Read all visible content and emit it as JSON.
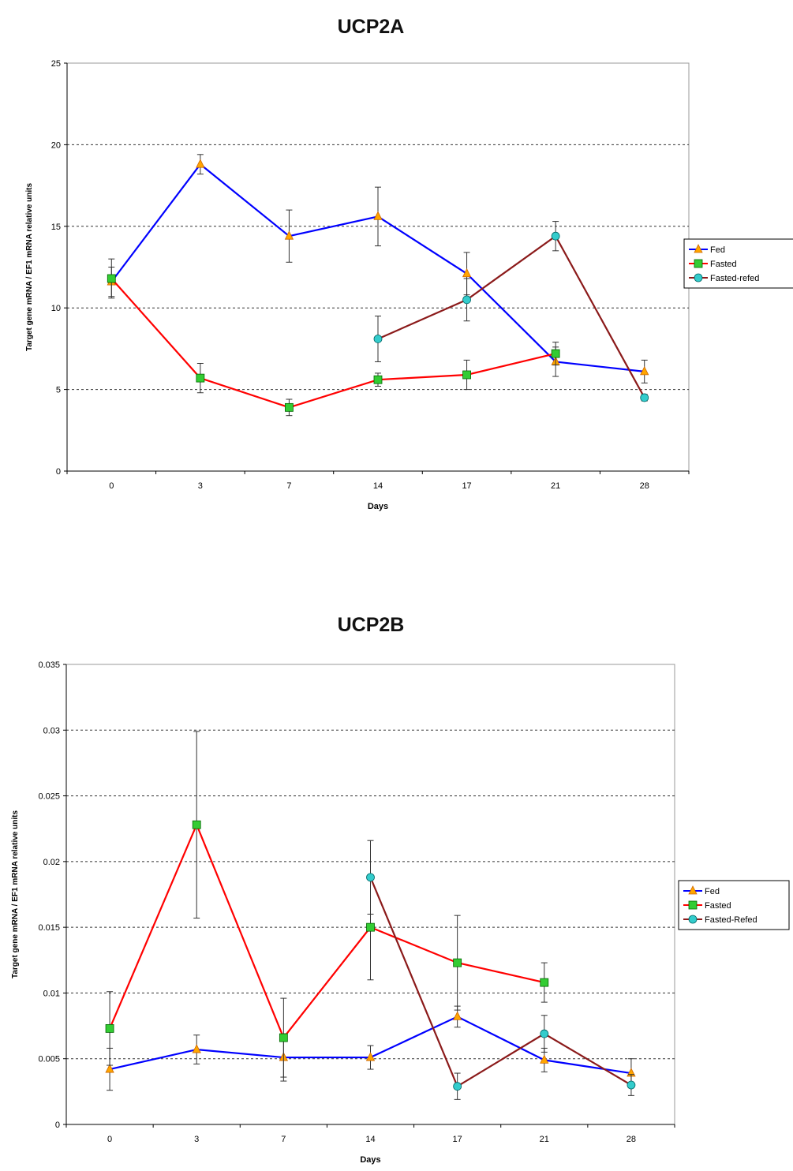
{
  "chart_data": [
    {
      "type": "line",
      "title": "UCP2A",
      "xlabel": "Days",
      "ylabel": "Target gene mRNA / EF1 mRNA relative units",
      "categories": [
        "0",
        "3",
        "7",
        "14",
        "17",
        "21",
        "28"
      ],
      "yticks": [
        "0",
        "5",
        "10",
        "15",
        "20",
        "25"
      ],
      "ylim": [
        0,
        25
      ],
      "grid": "horizontal dashed at major ticks",
      "legend_position": "right",
      "series": [
        {
          "name": "Fed",
          "color": "#0000ff",
          "marker": "triangle",
          "marker_color": "#ffa500",
          "values": [
            11.6,
            18.8,
            14.4,
            15.6,
            12.1,
            6.7,
            6.1
          ],
          "errors": [
            0.9,
            0.6,
            1.6,
            1.8,
            1.3,
            0.9,
            0.7
          ]
        },
        {
          "name": "Fasted",
          "color": "#ff0000",
          "marker": "square",
          "marker_color": "#33cc33",
          "values": [
            11.8,
            5.7,
            3.9,
            5.6,
            5.9,
            7.2,
            null
          ],
          "errors": [
            1.2,
            0.9,
            0.5,
            0.4,
            0.9,
            0.7,
            null
          ]
        },
        {
          "name": "Fasted-refed",
          "color": "#8b1a1a",
          "marker": "circle",
          "marker_color": "#33cccc",
          "values": [
            null,
            null,
            null,
            8.1,
            10.5,
            14.4,
            4.5
          ],
          "errors": [
            null,
            null,
            null,
            1.4,
            1.3,
            0.9,
            0.2
          ]
        }
      ]
    },
    {
      "type": "line",
      "title": "UCP2B",
      "xlabel": "Days",
      "ylabel": "Target gene mRNA / EF1 mRNA relative units",
      "categories": [
        "0",
        "3",
        "7",
        "14",
        "17",
        "21",
        "28"
      ],
      "yticks": [
        "0",
        "0.005",
        "0.01",
        "0.015",
        "0.02",
        "0.025",
        "0.03",
        "0.035"
      ],
      "ylim": [
        0,
        0.035
      ],
      "grid": "horizontal dashed at major ticks",
      "legend_position": "right",
      "series": [
        {
          "name": "Fed",
          "color": "#0000ff",
          "marker": "triangle",
          "marker_color": "#ffa500",
          "values": [
            0.0042,
            0.0057,
            0.0051,
            0.0051,
            0.0082,
            0.0049,
            0.0039
          ],
          "errors": [
            0.0016,
            0.0011,
            0.0018,
            0.0009,
            0.0008,
            0.0009,
            0.0011
          ]
        },
        {
          "name": "Fasted",
          "color": "#ff0000",
          "marker": "square",
          "marker_color": "#33cc33",
          "values": [
            0.0073,
            0.0228,
            0.0066,
            0.015,
            0.0123,
            0.0108,
            null
          ],
          "errors": [
            0.0028,
            0.0071,
            0.003,
            0.004,
            0.0036,
            0.0015,
            null
          ]
        },
        {
          "name": "Fasted-Refed",
          "color": "#8b1a1a",
          "marker": "circle",
          "marker_color": "#33cccc",
          "values": [
            null,
            null,
            null,
            0.0188,
            0.0029,
            0.0069,
            0.003
          ],
          "errors": [
            null,
            null,
            null,
            0.0028,
            0.001,
            0.0014,
            0.0008
          ]
        }
      ]
    }
  ]
}
